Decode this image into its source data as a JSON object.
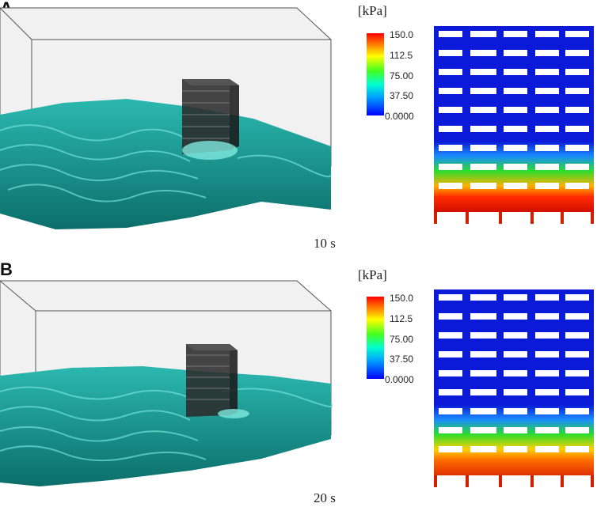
{
  "panels": [
    {
      "letter": "A",
      "unit_label": "[kPa]",
      "colorbar_ticks": [
        "150.0",
        "112.5",
        "75.00",
        "37.50",
        "0.0000"
      ],
      "time_label": "10 s",
      "colors": {
        "water": "#1fa7a0",
        "low": "#0000ff",
        "high": "#ff0000"
      }
    },
    {
      "letter": "B",
      "unit_label": "[kPa]",
      "colorbar_ticks": [
        "150.0",
        "112.5",
        "75.00",
        "37.50",
        "0.0000"
      ],
      "time_label": "20 s",
      "colors": {
        "water": "#1fa7a0",
        "low": "#0000ff",
        "high": "#ff0000"
      }
    }
  ]
}
